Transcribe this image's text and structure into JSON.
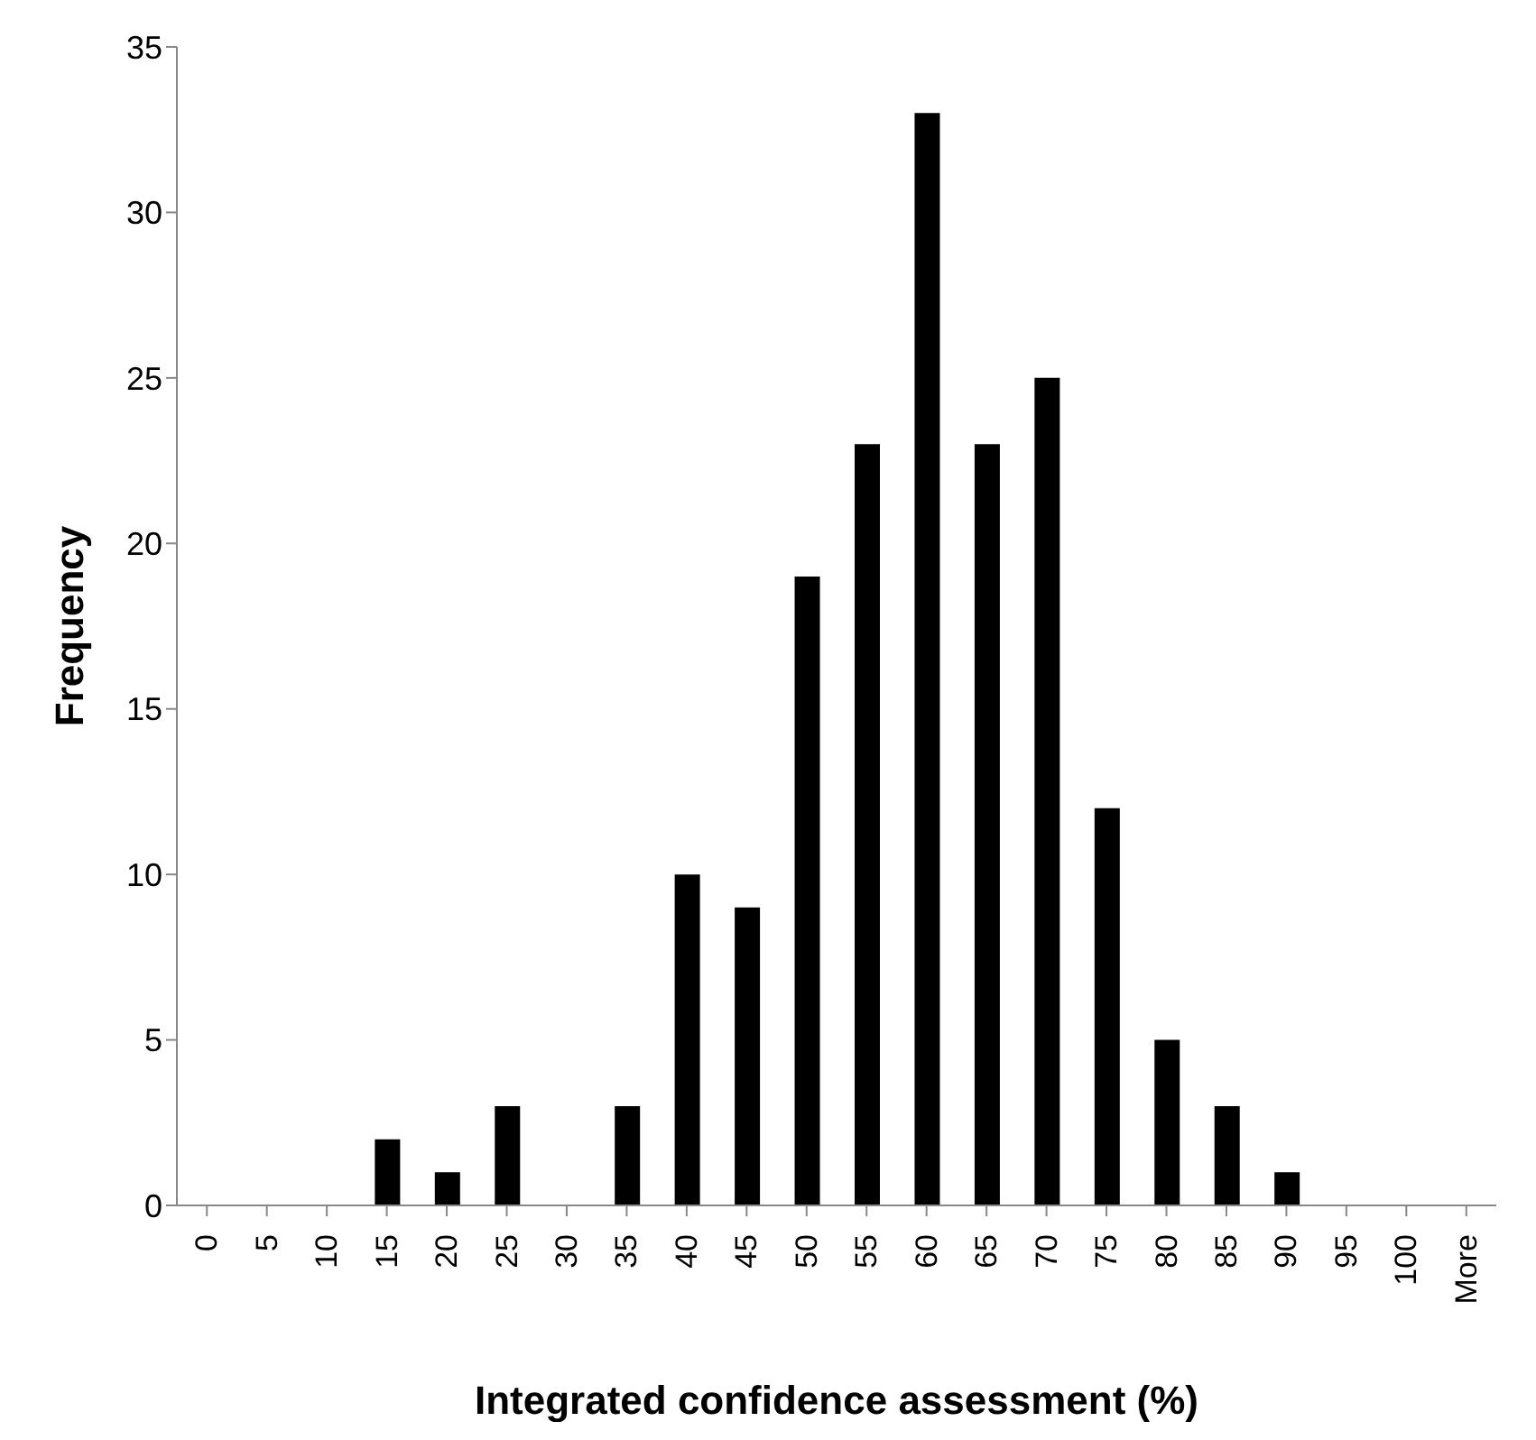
{
  "chart_data": {
    "type": "bar",
    "xlabel": "Integrated confidence assessment (%)",
    "ylabel": "Frequency",
    "categories": [
      "0",
      "5",
      "10",
      "15",
      "20",
      "25",
      "30",
      "35",
      "40",
      "45",
      "50",
      "55",
      "60",
      "65",
      "70",
      "75",
      "80",
      "85",
      "90",
      "95",
      "100",
      "More"
    ],
    "values": [
      0,
      0,
      0,
      2,
      1,
      3,
      0,
      3,
      10,
      9,
      19,
      23,
      33,
      23,
      25,
      12,
      5,
      3,
      1,
      0,
      0,
      0
    ],
    "color": "#000000",
    "ylim": [
      0,
      35
    ],
    "yticks": [
      0,
      5,
      10,
      15,
      20,
      25,
      30,
      35
    ],
    "grid": false,
    "legend": false
  }
}
